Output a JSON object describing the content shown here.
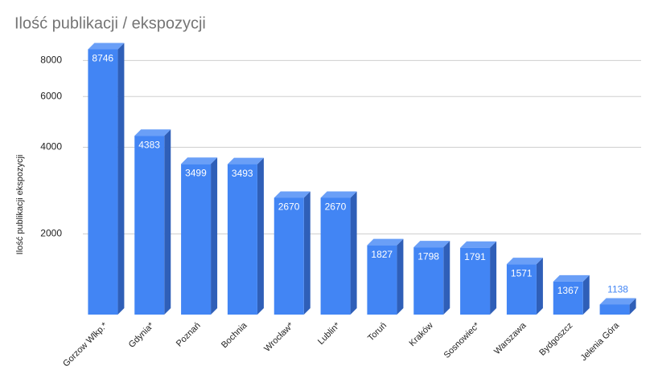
{
  "chart_data": {
    "type": "bar",
    "title": "Ilość publikacji / ekspozycji",
    "y_label": "Ilość publikacji ekspozycji",
    "categories": [
      "Gorzow Wlkp.*",
      "Gdynia*",
      "Poznań",
      "Bochnia",
      "Wrocław*",
      "Lublin*",
      "Toruń",
      "Kraków",
      "Sosnowiec*",
      "Warszawa",
      "Bydgoszcz",
      "Jelenia Góra"
    ],
    "values": [
      8746,
      4383,
      3499,
      3493,
      2670,
      2670,
      1827,
      1798,
      1791,
      1571,
      1367,
      1138
    ],
    "color": "#4285f4",
    "log_scale": true,
    "grid": true,
    "ylim": [
      1050,
      9000
    ],
    "yticks": [
      2000,
      4000,
      6000,
      8000
    ]
  }
}
